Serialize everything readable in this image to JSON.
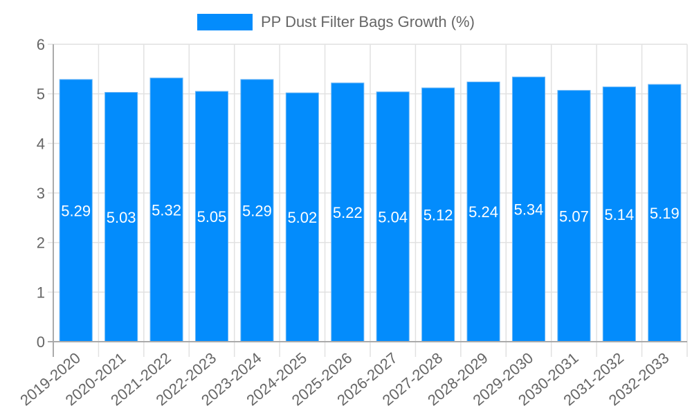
{
  "chart_data": {
    "type": "bar",
    "title": "",
    "legend": [
      {
        "label": "PP Dust Filter Bags Growth (%)",
        "color": "#038cfc"
      }
    ],
    "legend_position": "top",
    "categories": [
      "2019-2020",
      "2020-2021",
      "2021-2022",
      "2022-2023",
      "2023-2024",
      "2024-2025",
      "2025-2026",
      "2026-2027",
      "2027-2028",
      "2028-2029",
      "2029-2030",
      "2030-2031",
      "2031-2032",
      "2032-2033"
    ],
    "series": [
      {
        "name": "PP Dust Filter Bags Growth (%)",
        "values": [
          5.29,
          5.03,
          5.32,
          5.05,
          5.29,
          5.02,
          5.22,
          5.04,
          5.12,
          5.24,
          5.34,
          5.07,
          5.14,
          5.19
        ]
      }
    ],
    "value_labels": [
      "5.29",
      "5.03",
      "5.32",
      "5.05",
      "5.29",
      "5.02",
      "5.22",
      "5.04",
      "5.12",
      "5.24",
      "5.34",
      "5.07",
      "5.14",
      "5.19"
    ],
    "xlabel": "",
    "ylabel": "",
    "ylim": [
      0,
      6
    ],
    "yticks": [
      "0",
      "1",
      "2",
      "3",
      "4",
      "5",
      "6"
    ],
    "grid": true,
    "bar_color": "#038cfc"
  },
  "legend": {
    "label": "PP Dust Filter Bags Growth (%)"
  }
}
